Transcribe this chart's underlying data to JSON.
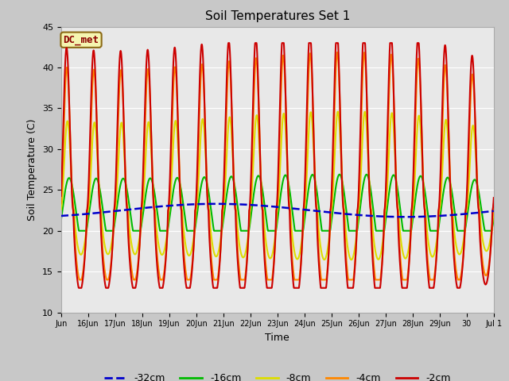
{
  "title": "Soil Temperatures Set 1",
  "xlabel": "Time",
  "ylabel": "Soil Temperature (C)",
  "ylim": [
    10,
    45
  ],
  "yticks": [
    10,
    15,
    20,
    25,
    30,
    35,
    40,
    45
  ],
  "fig_bg_color": "#c8c8c8",
  "plot_bg_color": "#e8e8e8",
  "annotation_text": "DC_met",
  "annotation_color": "#8B0000",
  "annotation_bg": "#f5f5b0",
  "series": {
    "-32cm": {
      "color": "#0000cc",
      "linewidth": 1.8,
      "linestyle": "--"
    },
    "-16cm": {
      "color": "#00bb00",
      "linewidth": 1.5,
      "linestyle": "-"
    },
    "-8cm": {
      "color": "#dddd00",
      "linewidth": 1.5,
      "linestyle": "-"
    },
    "-4cm": {
      "color": "#ff8800",
      "linewidth": 1.5,
      "linestyle": "-"
    },
    "-2cm": {
      "color": "#cc0000",
      "linewidth": 1.5,
      "linestyle": "-"
    }
  },
  "xtick_labels": [
    "Jun",
    "16Jun",
    "17Jun",
    "18Jun",
    "19Jun",
    "20Jun",
    "21Jun",
    "22Jun",
    "23Jun",
    "24Jun",
    "25Jun",
    "26Jun",
    "27Jun",
    "28Jun",
    "29Jun",
    "30",
    "Jul 1"
  ],
  "legend_labels": [
    "-32cm",
    "-16cm",
    "-8cm",
    "-4cm",
    "-2cm"
  ],
  "legend_colors": [
    "#0000cc",
    "#00bb00",
    "#dddd00",
    "#ff8800",
    "#cc0000"
  ],
  "legend_linestyles": [
    "--",
    "-",
    "-",
    "-",
    "-"
  ],
  "n_days": 16.0,
  "n_pts": 2000
}
